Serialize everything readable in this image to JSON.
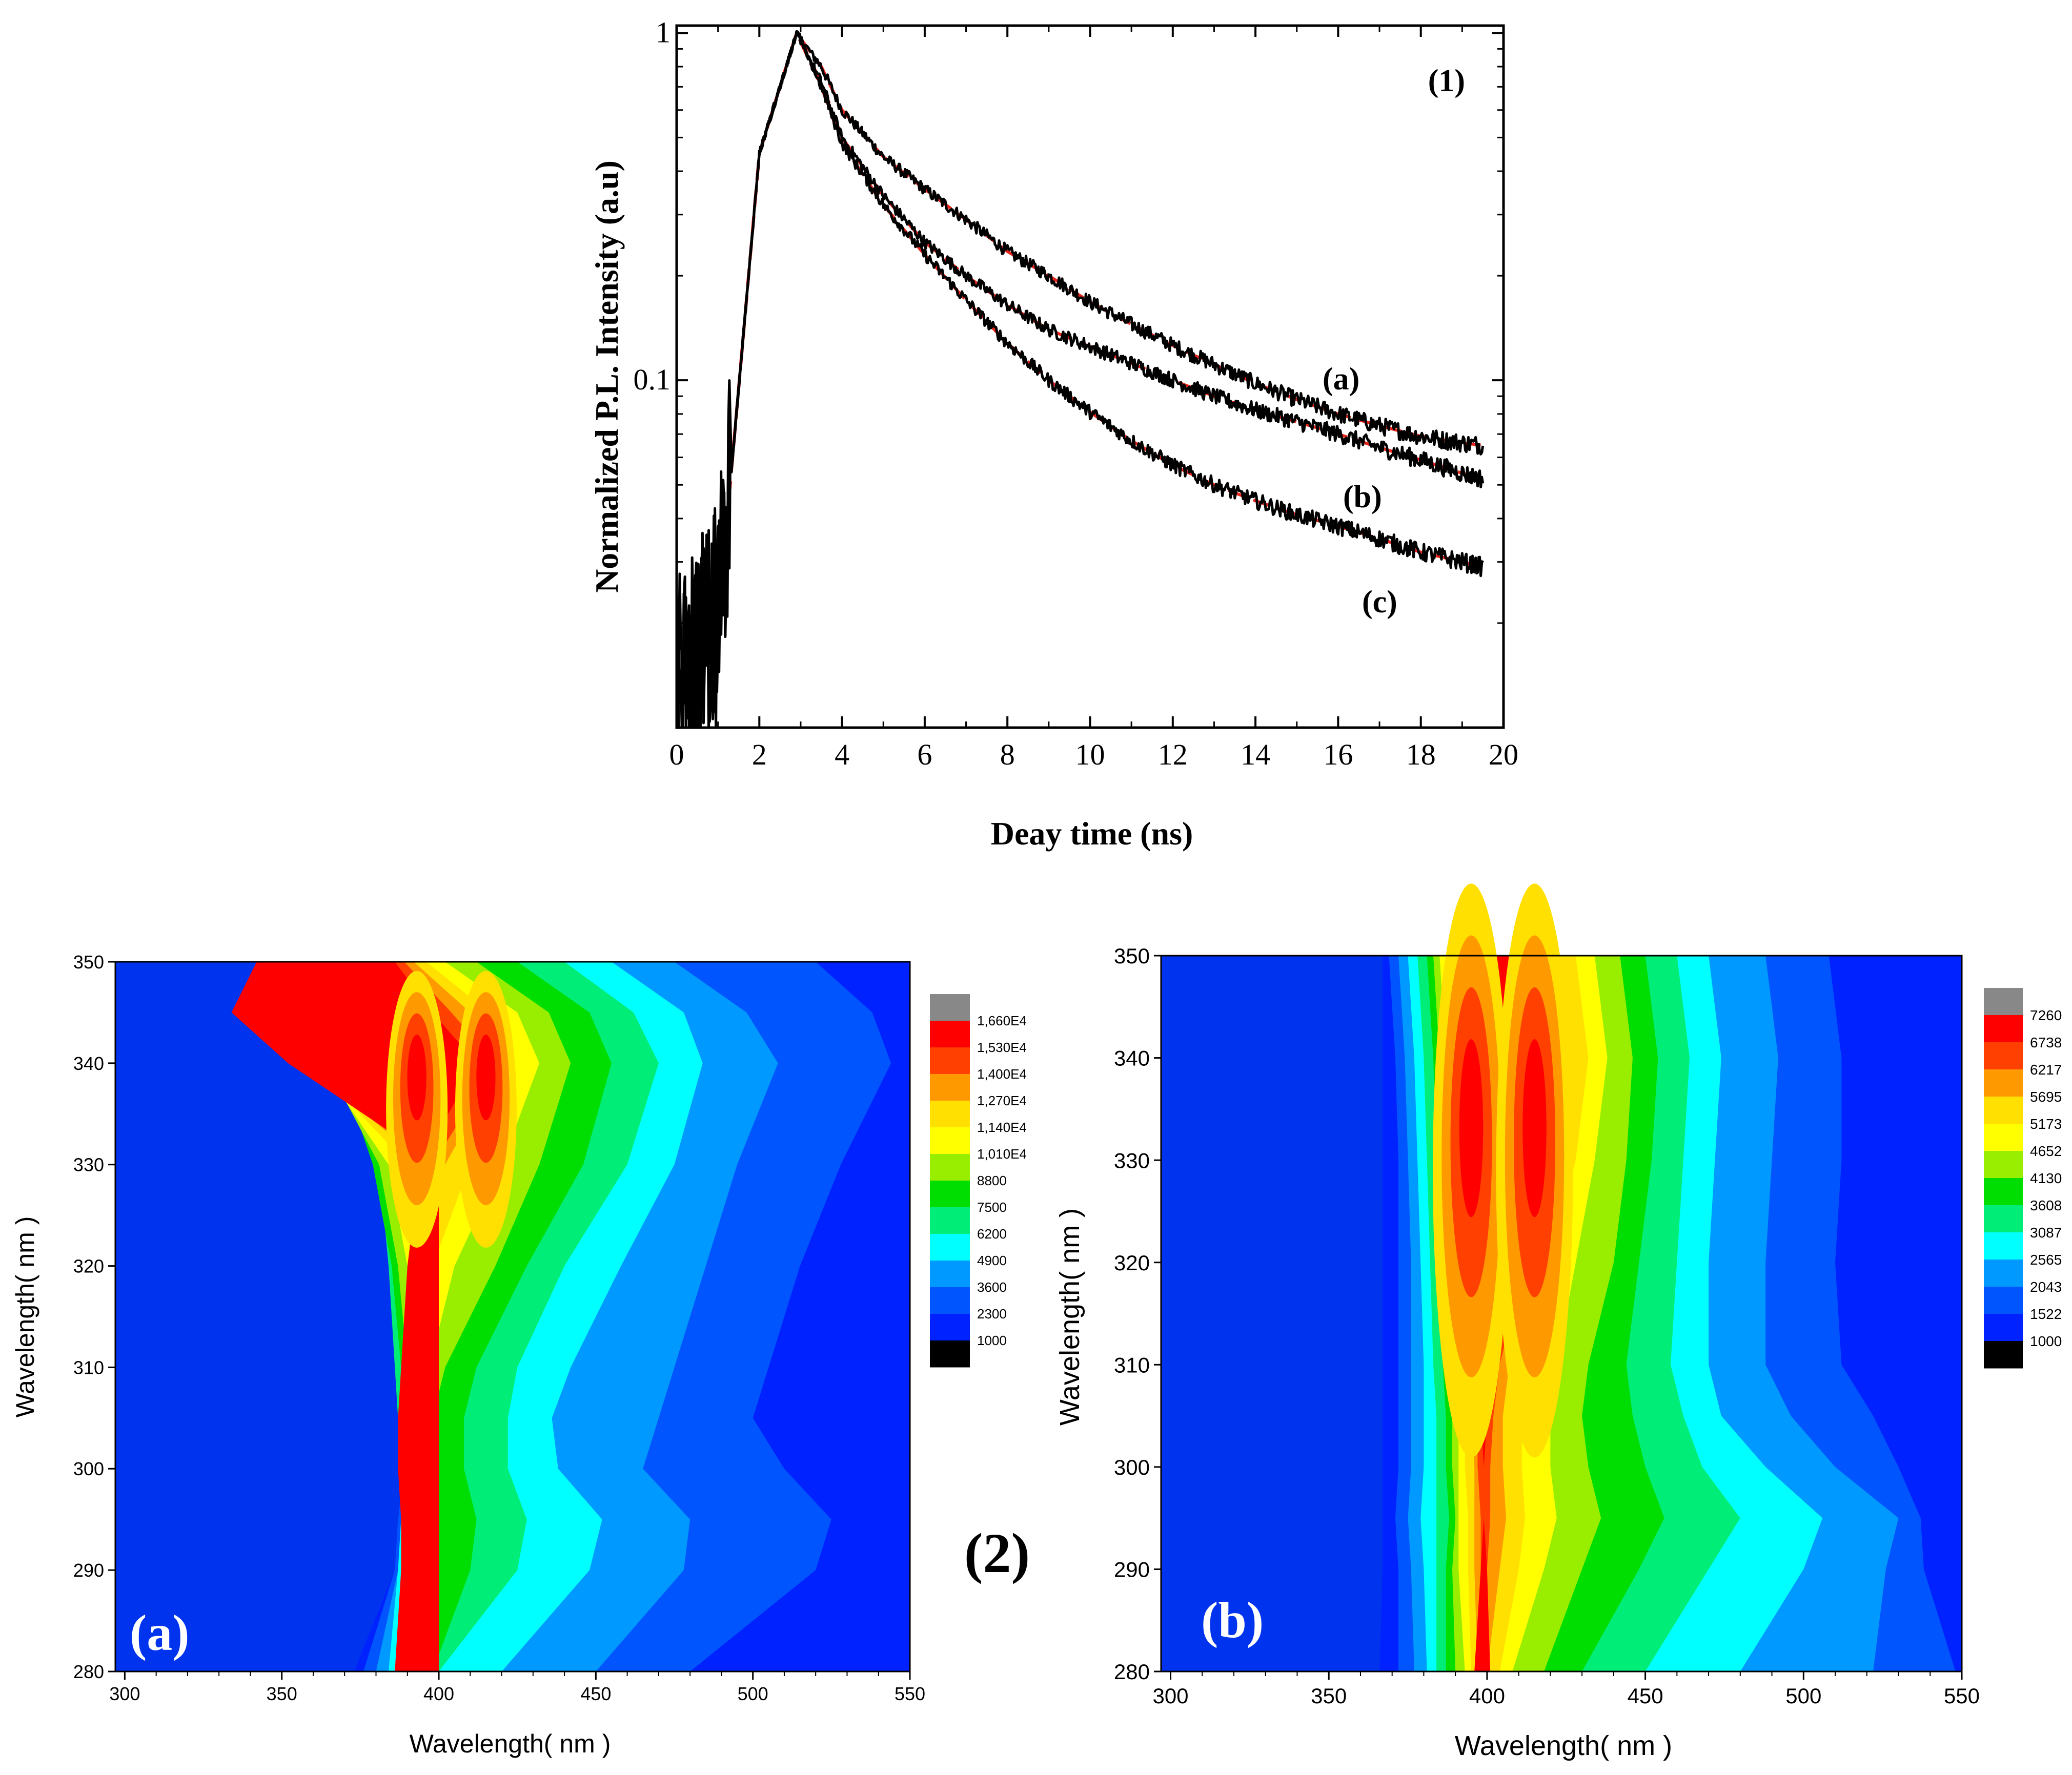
{
  "chart_data": [
    {
      "type": "line",
      "panel_label": "(1)",
      "title": "",
      "xlabel": "Deay time (ns)",
      "ylabel": "Normalized P.L. Intensity (a.u)",
      "yscale": "log",
      "xlim": [
        0,
        20
      ],
      "ylim": [
        0.01,
        1.05
      ],
      "x_ticks": [
        0,
        2,
        4,
        6,
        8,
        10,
        12,
        14,
        16,
        18,
        20
      ],
      "x_tick_labels": [
        "0",
        "2",
        "4",
        "6",
        "8",
        "10",
        "12",
        "14",
        "16",
        "18",
        "20"
      ],
      "y_ticks": [
        0.1,
        1
      ],
      "y_tick_labels": [
        "0.1",
        "1"
      ],
      "peak_time": 2.9,
      "series": [
        {
          "name": "(a)",
          "color": "#000000",
          "fit_color": "#e8261b",
          "x": [
            0,
            1,
            2,
            2.9,
            3.5,
            4,
            5,
            6,
            7,
            8,
            9,
            10,
            11,
            12,
            13,
            14,
            15,
            16,
            17,
            18,
            19,
            19.5
          ],
          "values": [
            0.012,
            0.02,
            0.45,
            1.0,
            0.8,
            0.6,
            0.44,
            0.355,
            0.29,
            0.235,
            0.2,
            0.168,
            0.145,
            0.126,
            0.111,
            0.098,
            0.088,
            0.08,
            0.074,
            0.069,
            0.066,
            0.065
          ]
        },
        {
          "name": "(b)",
          "color": "#000000",
          "fit_color": "#e8261b",
          "x": [
            0,
            1,
            2,
            2.9,
            3.5,
            4,
            5,
            6,
            7,
            8,
            9,
            10,
            11,
            12,
            13,
            14,
            15,
            16,
            17,
            18,
            19,
            19.5
          ],
          "values": [
            0.012,
            0.02,
            0.45,
            1.0,
            0.72,
            0.5,
            0.34,
            0.25,
            0.2,
            0.165,
            0.14,
            0.125,
            0.112,
            0.1,
            0.09,
            0.082,
            0.076,
            0.07,
            0.064,
            0.059,
            0.054,
            0.052
          ]
        },
        {
          "name": "(c)",
          "color": "#000000",
          "fit_color": "#e8261b",
          "x": [
            0,
            1,
            2,
            2.9,
            3.5,
            4,
            5,
            6,
            7,
            8,
            9,
            10,
            11,
            12,
            13,
            14,
            15,
            16,
            17,
            18,
            19,
            19.5
          ],
          "values": [
            0.012,
            0.02,
            0.45,
            1.0,
            0.7,
            0.48,
            0.32,
            0.23,
            0.17,
            0.128,
            0.1,
            0.081,
            0.067,
            0.057,
            0.05,
            0.045,
            0.041,
            0.038,
            0.035,
            0.032,
            0.03,
            0.029
          ]
        }
      ]
    },
    {
      "type": "heatmap",
      "panel_label": "(a)",
      "xlabel": "Wavelength( nm )",
      "ylabel": "Wavelength( nm )",
      "xlim": [
        297,
        550
      ],
      "ylim": [
        280,
        350
      ],
      "x_ticks": [
        300,
        350,
        400,
        450,
        500,
        550
      ],
      "x_tick_labels": [
        "300",
        "350",
        "400",
        "450",
        "500",
        "550"
      ],
      "y_ticks": [
        280,
        290,
        300,
        310,
        320,
        330,
        340,
        350
      ],
      "y_tick_labels": [
        "280",
        "290",
        "300",
        "310",
        "320",
        "330",
        "340",
        "350"
      ],
      "colorbar_levels": [
        "1,660E4",
        "1,530E4",
        "1,400E4",
        "1,270E4",
        "1,140E4",
        "1,010E4",
        "8800",
        "7500",
        "6200",
        "4900",
        "3600",
        "2300",
        "1000"
      ],
      "colorbar_colors": [
        "#888888",
        "#ff0000",
        "#ff4000",
        "#ff9900",
        "#ffe000",
        "#ffff00",
        "#99ee00",
        "#00dd00",
        "#00ee77",
        "#00ffff",
        "#0099ff",
        "#0055ff",
        "#0022ff",
        "#000000"
      ],
      "background_color": "#0033ee",
      "peaks": [
        {
          "x": 393,
          "y": 340
        },
        {
          "x": 415,
          "y": 340
        }
      ],
      "band_edges": {
        "y": [
          280,
          290,
          295,
          300,
          305,
          310,
          320,
          330,
          340,
          345,
          350
        ],
        "l": [
          [
            373,
            386,
            388,
            389,
            390,
            391,
            391,
            389,
            386,
            384,
            385
          ],
          [
            376,
            386,
            387,
            389,
            390,
            390,
            390,
            388,
            384,
            381,
            383
          ],
          [
            380,
            387,
            388,
            389,
            389,
            388,
            388,
            386,
            380,
            378,
            380
          ],
          [
            384,
            387,
            388,
            388,
            388,
            387,
            386,
            384,
            376,
            374,
            377
          ],
          [
            386,
            388,
            388,
            388,
            387,
            386,
            384,
            381,
            372,
            370,
            373
          ],
          [
            388,
            389,
            389,
            389,
            389,
            388,
            385,
            379,
            368,
            367,
            370
          ],
          [
            390,
            391,
            391,
            391,
            391,
            390,
            387,
            381,
            364,
            361,
            366
          ],
          [
            392,
            392,
            392,
            392,
            392,
            392,
            390,
            384,
            362,
            358,
            364
          ],
          [
            394,
            394,
            394,
            394,
            394,
            394,
            394,
            390,
            360,
            352,
            360
          ],
          [
            396,
            396,
            396,
            396,
            396,
            396,
            396,
            396,
            357,
            346,
            355
          ],
          [
            398,
            398,
            398,
            398,
            398,
            398,
            398,
            398,
            355,
            340,
            350
          ],
          [
            400,
            400,
            400,
            400,
            400,
            400,
            400,
            400,
            352,
            334,
            342
          ]
        ],
        "r": [
          [
            550,
            550,
            550,
            550,
            550,
            550,
            550,
            550,
            550,
            550,
            550
          ],
          [
            480,
            520,
            525,
            510,
            500,
            505,
            515,
            528,
            544,
            538,
            520
          ],
          [
            450,
            478,
            480,
            465,
            470,
            475,
            485,
            495,
            508,
            498,
            475
          ],
          [
            420,
            448,
            452,
            438,
            436,
            442,
            458,
            475,
            484,
            478,
            455
          ],
          [
            400,
            425,
            428,
            422,
            422,
            425,
            440,
            460,
            470,
            462,
            440
          ],
          [
            398,
            410,
            412,
            408,
            408,
            412,
            428,
            446,
            455,
            448,
            425
          ],
          [
            396,
            400,
            400,
            398,
            398,
            402,
            418,
            432,
            442,
            435,
            412
          ],
          [
            394,
            396,
            396,
            395,
            395,
            397,
            405,
            420,
            432,
            425,
            402
          ],
          [
            392,
            394,
            394,
            393,
            393,
            394,
            398,
            410,
            424,
            416,
            396
          ],
          [
            390,
            392,
            392,
            391,
            391,
            392,
            394,
            402,
            420,
            410,
            392
          ],
          [
            388,
            390,
            390,
            389,
            389,
            390,
            392,
            398,
            418,
            404,
            389
          ],
          [
            386,
            388,
            388,
            387,
            387,
            388,
            390,
            394,
            412,
            398,
            386
          ]
        ]
      }
    },
    {
      "type": "heatmap",
      "panel_label": "(b)",
      "xlabel": "Wavelength( nm )",
      "ylabel": "Wavelength( nm )",
      "xlim": [
        297,
        550
      ],
      "ylim": [
        280,
        350
      ],
      "x_ticks": [
        300,
        350,
        400,
        450,
        500,
        550
      ],
      "x_tick_labels": [
        "300",
        "350",
        "400",
        "450",
        "500",
        "550"
      ],
      "y_ticks": [
        280,
        290,
        300,
        310,
        320,
        330,
        340,
        350
      ],
      "y_tick_labels": [
        "280",
        "290",
        "300",
        "310",
        "320",
        "330",
        "340",
        "350"
      ],
      "colorbar_levels": [
        "7260",
        "6738",
        "6217",
        "5695",
        "5173",
        "4652",
        "4130",
        "3608",
        "3087",
        "2565",
        "2043",
        "1522",
        "1000"
      ],
      "colorbar_colors": [
        "#888888",
        "#ff0000",
        "#ff4000",
        "#ff9900",
        "#ffe000",
        "#ffff00",
        "#99ee00",
        "#00dd00",
        "#00ee77",
        "#00ffff",
        "#0099ff",
        "#0055ff",
        "#0022ff",
        "#000000"
      ],
      "background_color": "#0033ee",
      "peaks": [
        {
          "x": 395,
          "y": 335
        },
        {
          "x": 415,
          "y": 335
        }
      ],
      "band_edges": {
        "y": [
          280,
          290,
          295,
          300,
          305,
          310,
          320,
          330,
          340,
          345,
          350
        ],
        "l": [
          [
            366,
            367,
            367,
            367,
            367,
            367,
            367,
            367,
            367,
            367,
            367
          ],
          [
            372,
            372,
            371,
            372,
            372,
            372,
            372,
            372,
            371,
            370,
            369
          ],
          [
            377,
            376,
            375,
            376,
            376,
            376,
            376,
            375,
            374,
            373,
            372
          ],
          [
            381,
            380,
            379,
            380,
            380,
            380,
            379,
            378,
            377,
            376,
            375
          ],
          [
            384,
            384,
            384,
            384,
            384,
            383,
            382,
            381,
            380,
            379,
            378
          ],
          [
            387,
            387,
            388,
            387,
            387,
            386,
            385,
            384,
            383,
            382,
            381
          ],
          [
            390,
            389,
            390,
            389,
            389,
            388,
            387,
            386,
            385,
            384,
            383
          ],
          [
            393,
            391,
            391,
            391,
            391,
            390,
            389,
            388,
            387,
            386,
            385
          ],
          [
            395,
            394,
            394,
            393,
            393,
            392,
            391,
            390,
            389,
            388,
            387
          ],
          [
            397,
            396,
            396,
            396,
            395,
            394,
            393,
            392,
            391,
            390,
            389
          ],
          [
            399,
            398,
            398,
            397,
            397,
            396,
            395,
            394,
            392,
            391,
            390
          ],
          [
            401,
            400,
            399,
            399,
            398,
            398,
            396,
            395,
            393,
            392,
            392
          ]
        ],
        "r": [
          [
            550,
            550,
            550,
            550,
            550,
            550,
            550,
            550,
            550,
            550,
            550
          ],
          [
            548,
            538,
            537,
            530,
            522,
            512,
            510,
            512,
            512,
            510,
            508
          ],
          [
            522,
            526,
            530,
            510,
            496,
            488,
            488,
            490,
            492,
            490,
            488
          ],
          [
            480,
            500,
            506,
            488,
            474,
            470,
            470,
            472,
            474,
            472,
            470
          ],
          [
            450,
            470,
            480,
            468,
            462,
            458,
            460,
            462,
            464,
            462,
            460
          ],
          [
            430,
            448,
            456,
            450,
            446,
            444,
            448,
            452,
            454,
            452,
            450
          ],
          [
            418,
            430,
            436,
            432,
            430,
            432,
            440,
            444,
            446,
            444,
            442
          ],
          [
            408,
            418,
            422,
            420,
            420,
            422,
            428,
            434,
            438,
            436,
            434
          ],
          [
            404,
            410,
            412,
            411,
            411,
            413,
            420,
            428,
            432,
            430,
            428
          ],
          [
            400,
            404,
            406,
            405,
            405,
            407,
            414,
            422,
            426,
            424,
            422
          ],
          [
            398,
            400,
            401,
            401,
            402,
            404,
            412,
            420,
            423,
            420,
            418
          ],
          [
            396,
            398,
            399,
            399,
            400,
            402,
            410,
            418,
            420,
            416,
            414
          ]
        ]
      }
    }
  ],
  "figure_labels": {
    "middle": "(2)"
  },
  "colors": {
    "fit_line": "#e8261b",
    "data_line": "#000000",
    "axis": "#000000"
  }
}
